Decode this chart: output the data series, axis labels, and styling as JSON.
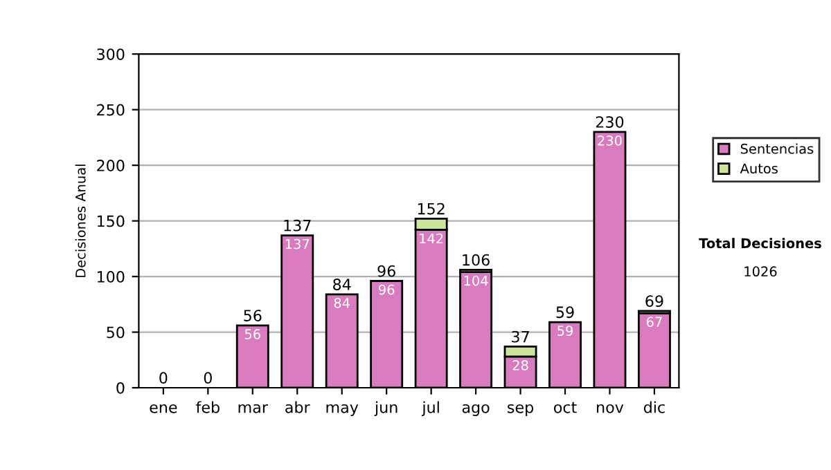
{
  "chart_data": {
    "type": "bar",
    "ylabel": "Decisiones Anual",
    "categories": [
      "ene",
      "feb",
      "mar",
      "abr",
      "may",
      "jun",
      "jul",
      "ago",
      "sep",
      "oct",
      "nov",
      "dic"
    ],
    "stacked": true,
    "series": [
      {
        "name": "Sentencias",
        "color": "#d97bbf",
        "values": [
          0,
          0,
          56,
          137,
          84,
          96,
          142,
          104,
          28,
          59,
          230,
          67
        ],
        "value_labels": [
          null,
          null,
          "56",
          "137",
          "84",
          "96",
          "142",
          "104",
          "28",
          "59",
          "230",
          "67"
        ]
      },
      {
        "name": "Autos",
        "color": "#cce59a",
        "values": [
          0,
          0,
          0,
          0,
          0,
          0,
          10,
          2,
          9,
          0,
          0,
          2
        ]
      }
    ],
    "totals": [
      "0",
      "0",
      "56",
      "137",
      "84",
      "96",
      "152",
      "106",
      "37",
      "59",
      "230",
      "69"
    ],
    "ylim": [
      0,
      300
    ],
    "yticks": [
      0,
      50,
      100,
      150,
      200,
      250,
      300
    ],
    "grid": "y",
    "legend": "right",
    "annotations": [
      "Total Decisiones",
      "1026"
    ]
  }
}
